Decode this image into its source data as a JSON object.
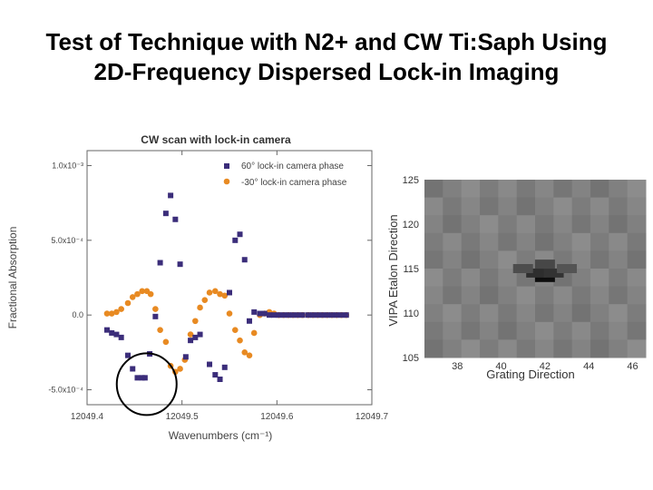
{
  "slide": {
    "title_line1": "Test of Technique with N2+ and CW Ti:Saph Using",
    "title_line2": "2D-Frequency Dispersed Lock-in Imaging"
  },
  "chart_data": [
    {
      "type": "scatter",
      "title": "CW scan with lock-in camera",
      "xlabel": "Wavenumbers (cm⁻¹)",
      "ylabel": "Fractional Absorption",
      "xlim": [
        12049.4,
        12049.7
      ],
      "ylim": [
        -0.0006,
        0.0011
      ],
      "xticks": [
        12049.4,
        12049.5,
        12049.6,
        12049.7
      ],
      "xtick_labels": [
        "12049.4",
        "12049.5",
        "12049.6",
        "12049.7"
      ],
      "yticks": [
        -0.0005,
        0.0,
        0.0005,
        0.001
      ],
      "ytick_labels": [
        "-5.0x10⁻⁴",
        "0.0",
        "5.0x10⁻⁴",
        "1.0x10⁻³"
      ],
      "legend_position": "top-right",
      "series": [
        {
          "name": "60° lock-in camera phase",
          "color": "#3b2d7a",
          "marker": "square",
          "x": [
            12049.421,
            12049.426,
            12049.431,
            12049.436,
            12049.443,
            12049.448,
            12049.453,
            12049.458,
            12049.461,
            12049.466,
            12049.472,
            12049.477,
            12049.483,
            12049.488,
            12049.493,
            12049.498,
            12049.504,
            12049.509,
            12049.514,
            12049.519,
            12049.529,
            12049.535,
            12049.54,
            12049.545,
            12049.55,
            12049.556,
            12049.561,
            12049.566,
            12049.571,
            12049.576,
            12049.582,
            12049.587,
            12049.592,
            12049.597,
            12049.602,
            12049.607,
            12049.612,
            12049.617,
            12049.622,
            12049.627,
            12049.633,
            12049.638,
            12049.643,
            12049.648,
            12049.653,
            12049.658,
            12049.663,
            12049.668,
            12049.673
          ],
          "y": [
            -0.0001,
            -0.00012,
            -0.00013,
            -0.00015,
            -0.00027,
            -0.00036,
            -0.00042,
            -0.00042,
            -0.00042,
            -0.00026,
            -1e-05,
            0.00035,
            0.00068,
            0.0008,
            0.00064,
            0.00034,
            -0.00028,
            -0.00017,
            -0.00015,
            -0.00013,
            -0.00033,
            -0.0004,
            -0.00043,
            -0.00035,
            0.00015,
            0.0005,
            0.00054,
            0.00037,
            -4e-05,
            2e-05,
            1e-05,
            1e-05,
            0.0,
            0.0,
            0.0,
            0.0,
            0.0,
            0.0,
            0.0,
            0.0,
            0.0,
            0.0,
            0.0,
            0.0,
            0.0,
            0.0,
            0.0,
            0.0,
            0.0
          ]
        },
        {
          "name": "-30° lock-in camera phase",
          "color": "#e88a22",
          "marker": "circle",
          "x": [
            12049.421,
            12049.426,
            12049.431,
            12049.436,
            12049.443,
            12049.448,
            12049.453,
            12049.458,
            12049.463,
            12049.467,
            12049.472,
            12049.477,
            12049.483,
            12049.488,
            12049.493,
            12049.498,
            12049.503,
            12049.509,
            12049.514,
            12049.519,
            12049.524,
            12049.529,
            12049.535,
            12049.54,
            12049.545,
            12049.55,
            12049.556,
            12049.561,
            12049.566,
            12049.571,
            12049.576,
            12049.582,
            12049.587,
            12049.592,
            12049.597,
            12049.602,
            12049.607,
            12049.612,
            12049.617,
            12049.622,
            12049.627,
            12049.633,
            12049.638,
            12049.643,
            12049.648,
            12049.653,
            12049.658,
            12049.663,
            12049.668,
            12049.673
          ],
          "y": [
            1e-05,
            1e-05,
            2e-05,
            4e-05,
            8e-05,
            0.00012,
            0.00014,
            0.00016,
            0.00016,
            0.00014,
            4e-05,
            -0.0001,
            -0.00018,
            -0.00034,
            -0.00038,
            -0.00036,
            -0.0003,
            -0.00013,
            -4e-05,
            5e-05,
            0.0001,
            0.00015,
            0.00016,
            0.00014,
            0.00013,
            1e-05,
            -0.0001,
            -0.00017,
            -0.00025,
            -0.00027,
            -0.00012,
            0.0,
            1e-05,
            2e-05,
            1e-05,
            0.0,
            0.0,
            0.0,
            0.0,
            0.0,
            0.0,
            0.0,
            0.0,
            0.0,
            0.0,
            0.0,
            0.0,
            0.0,
            0.0,
            0.0
          ]
        }
      ],
      "annotations": [
        {
          "type": "circle",
          "x": 12049.459,
          "y": -0.00042
        }
      ]
    },
    {
      "type": "heatmap",
      "xlabel": "Grating Direction",
      "ylabel": "VIPA Etalon Direction",
      "xlim": [
        36.5,
        46.6
      ],
      "ylim": [
        105,
        125
      ],
      "xticks": [
        38,
        40,
        42,
        44,
        46
      ],
      "yticks": [
        105,
        110,
        115,
        120,
        125
      ],
      "colorscale": "grayscale",
      "background_level": 0.5,
      "cells": [
        {
          "x": 42,
          "y": 114,
          "value": 0.05
        },
        {
          "x": 41.6,
          "y": 114.5,
          "value": 0.18
        },
        {
          "x": 42.4,
          "y": 114.5,
          "value": 0.2
        },
        {
          "x": 41,
          "y": 115,
          "value": 0.3
        },
        {
          "x": 43,
          "y": 115,
          "value": 0.33
        },
        {
          "x": 42,
          "y": 115.5,
          "value": 0.28
        }
      ]
    }
  ]
}
